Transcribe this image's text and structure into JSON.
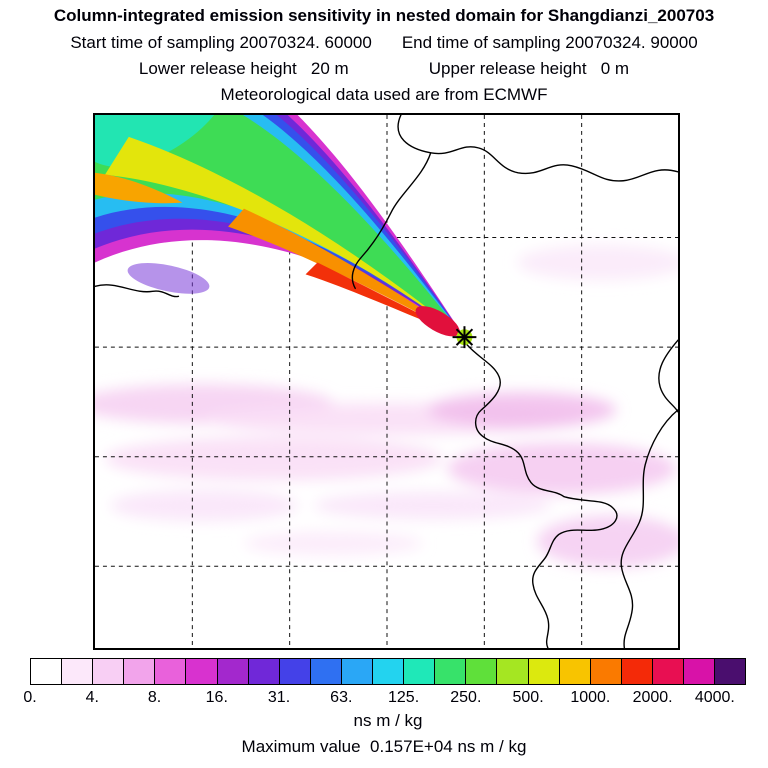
{
  "figure": {
    "title": "Column-integrated emission sensitivity in nested domain for Shangdianzi_200703",
    "start_time_line": "Start time of sampling 20070324. 60000",
    "end_time_line": "End time of sampling 20070324. 90000",
    "lower_release_line": "Lower release height   20 m",
    "upper_release_line": "Upper release height   0 m",
    "met_data_line": "Meteorological data used are from ECMWF",
    "units_label": "ns m / kg",
    "max_value_line": "Maximum value  0.157E+04 ns m / kg"
  },
  "colorbar": {
    "tick_labels": [
      "0.",
      "4.",
      "8.",
      "16.",
      "31.",
      "63.",
      "125.",
      "250.",
      "500.",
      "1000.",
      "2000.",
      "4000."
    ],
    "colors": [
      "#FFFFFF",
      "#FCE8FA",
      "#F8CFF4",
      "#F2A4EB",
      "#E961DB",
      "#D832CF",
      "#A328CD",
      "#7028D8",
      "#4441E8",
      "#2F70F2",
      "#2AA7F6",
      "#23D3EF",
      "#1FE8B8",
      "#37E26A",
      "#5FE03A",
      "#A5E622",
      "#DCE90E",
      "#F8C400",
      "#FA7A00",
      "#F42A08",
      "#E80F52",
      "#D812A8",
      "#4A0E6E"
    ],
    "segments_per_labeled_interval": 2
  },
  "chart_data": {
    "type": "heatmap",
    "title": "Column-integrated emission sensitivity in nested domain for Shangdianzi_200703",
    "value_label": "ns m / kg",
    "levels": [
      0,
      4,
      8,
      16,
      31,
      63,
      125,
      250,
      500,
      1000,
      2000,
      4000
    ],
    "level_labels": [
      "0.",
      "4.",
      "8.",
      "16.",
      "31.",
      "63.",
      "125.",
      "250.",
      "500.",
      "1000.",
      "2000.",
      "4000."
    ],
    "max_value": "0.157E+04",
    "max_value_numeric": 1570,
    "legend_position": "bottom",
    "grid": "dashed",
    "plume_note": "High-sensitivity plume (red/orange core ~1000-2000, surrounded by yellow, green, cyan, blue and purple bands) extends from the northwest corner of the domain to a receptor marker near the coast; faint pink bands (values ~2-8) lie over the southeastern half of the domain"
  },
  "map": {
    "receptor_marker": "asterisk-cross",
    "grid_columns": 6,
    "grid_rows": 5
  }
}
